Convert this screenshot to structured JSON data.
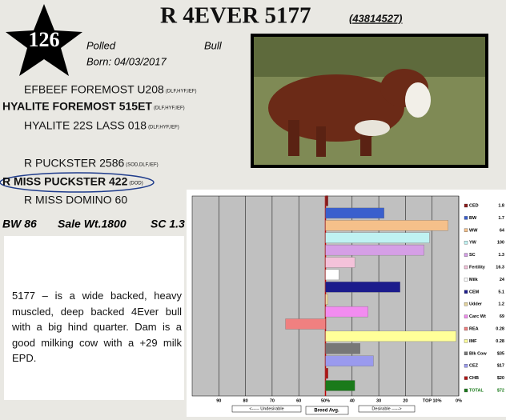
{
  "lot": "126",
  "name": "R 4EVER 5177",
  "registration": "(43814527)",
  "horn_status": "Polled",
  "sex": "Bull",
  "born": "Born: 04/03/2017",
  "pedigree": [
    {
      "name": "EFBEEF FOREMOST U208",
      "tags": "(DLF,HYF,IEF)"
    },
    {
      "name": "HYALITE FOREMOST 515ET",
      "tags": "(DLF,HYF,IEF)"
    },
    {
      "name": "HYALITE 22S LASS 018",
      "tags": "(DLF,HYF,IEF)"
    },
    {
      "name": "R PUCKSTER 2586",
      "tags": "(SOD,DLF,IEF)"
    },
    {
      "name": "R MISS PUCKSTER 422",
      "tags": "(DOD)"
    },
    {
      "name": "R MISS DOMINO 60"
    }
  ],
  "stats": [
    "BW 86",
    "Sale Wt.1800",
    "SC 1.3"
  ],
  "description": "5177 – is a wide backed, heavy muscled, deep backed 4Ever bull with a big hind quarter.  Dam is a good milking cow with a +29 milk EPD.",
  "chart_data": {
    "type": "bar",
    "categories": [
      "CED",
      "BW",
      "WW",
      "YW",
      "SC",
      "Fertility",
      "Milk",
      "CEM",
      "Udder",
      "Carc Wt",
      "REA",
      "IMF",
      "Blk Cow",
      "CEZ",
      "CHB",
      "TOTAL"
    ],
    "epds": [
      "1.8",
      "1.7",
      "64",
      "100",
      "1.3",
      "16.3",
      "24",
      "5.1",
      "1.2",
      "69",
      "0.28",
      "0.28",
      "$35",
      "$17",
      "$20",
      "$72"
    ],
    "values": [
      49,
      28,
      4,
      11,
      13,
      39,
      45,
      22,
      49,
      34,
      65,
      1,
      37,
      32,
      49,
      39
    ],
    "colors": [
      "#8b1a1a",
      "#3a5fcd",
      "#f5c08a",
      "#bff2f2",
      "#d59fe6",
      "#f4c2da",
      "#ffffff",
      "#1b1b8c",
      "#e6d59e",
      "#f28cf0",
      "#f08080",
      "#ffff99",
      "#777777",
      "#9a9aee",
      "#b01515",
      "#1a7a1a"
    ],
    "xlim": [
      100,
      0
    ],
    "xticks": [
      90,
      80,
      70,
      60,
      {
        "value": 50,
        "label": "50%"
      },
      40,
      30,
      20,
      {
        "value": 10,
        "label": "TOP 10%"
      },
      {
        "value": 0,
        "label": "0%"
      }
    ],
    "low_label": "<----- Undesirable",
    "mid_label": "Breed Avg.",
    "high_label": "Desirable ----->"
  }
}
